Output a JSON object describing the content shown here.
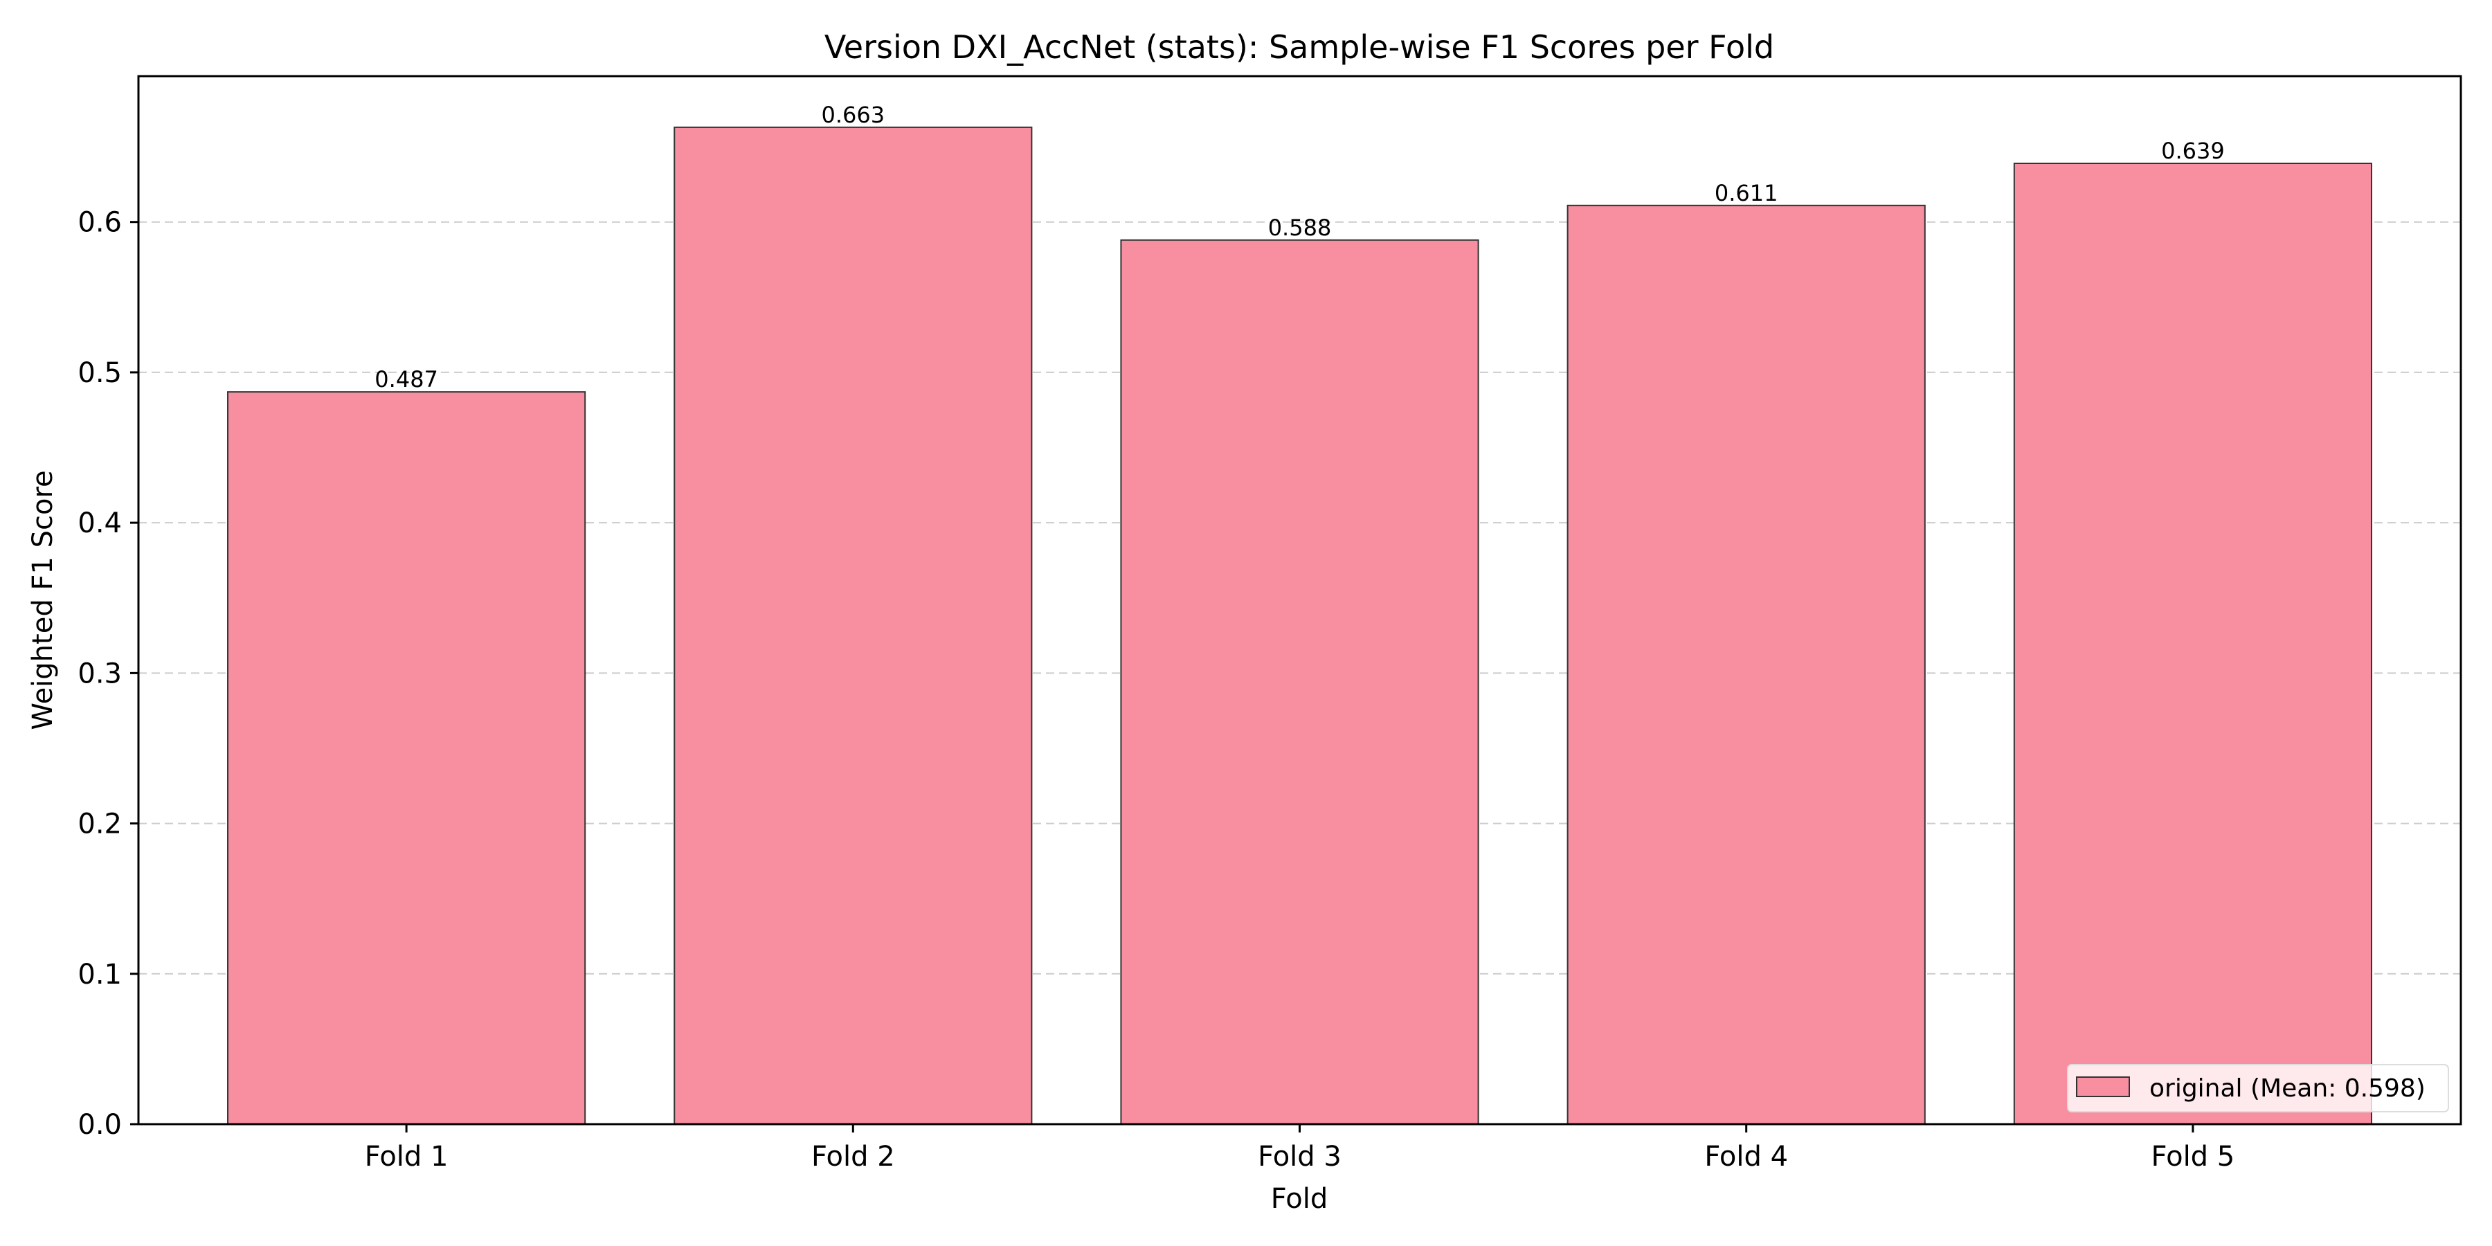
{
  "chart_data": {
    "type": "bar",
    "title": "Version DXI_AccNet (stats): Sample-wise F1 Scores per Fold",
    "xlabel": "Fold",
    "ylabel": "Weighted F1 Score",
    "categories": [
      "Fold 1",
      "Fold 2",
      "Fold 3",
      "Fold 4",
      "Fold 5"
    ],
    "series": [
      {
        "name": "original (Mean: 0.598)",
        "values": [
          0.487,
          0.663,
          0.588,
          0.611,
          0.639
        ]
      }
    ],
    "data_labels": [
      "0.487",
      "0.663",
      "0.588",
      "0.611",
      "0.639"
    ],
    "ylim": [
      0,
      0.697
    ],
    "yticks": [
      0.0,
      0.1,
      0.2,
      0.3,
      0.4,
      0.5,
      0.6
    ],
    "ytick_labels": [
      "0.0",
      "0.1",
      "0.2",
      "0.3",
      "0.4",
      "0.5",
      "0.6"
    ],
    "grid": "y-dashed",
    "legend_position": "bottom-right",
    "colors": {
      "bar": "#f78fa0",
      "edge": "#333333",
      "grid": "#cccccc"
    }
  }
}
